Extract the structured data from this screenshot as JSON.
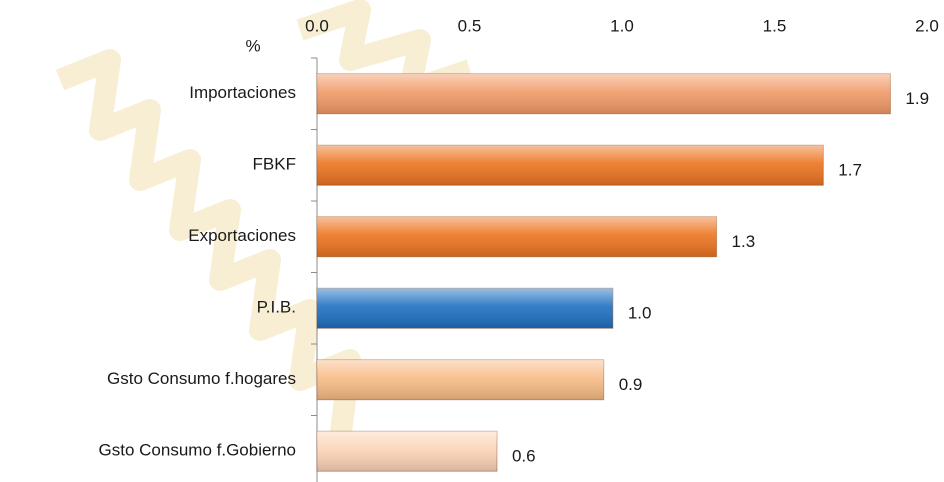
{
  "chart_data": {
    "type": "hbar",
    "y_label": "%",
    "categories": [
      "Importaciones",
      "FBKF",
      "Exportaciones",
      "P.I.B.",
      "Gsto Consumo f.hogares",
      "Gsto Consumo f.Gobierno"
    ],
    "values": [
      1.88,
      1.66,
      1.31,
      0.97,
      0.94,
      0.59
    ],
    "value_labels": [
      "1.9",
      "1.7",
      "1.3",
      "1.0",
      "0.9",
      "0.6"
    ],
    "colors": [
      "#f19a68",
      "#ec7420",
      "#ec7420",
      "#1f70c1",
      "#f8bb86",
      "#fcd3b6"
    ],
    "xlim": [
      0,
      2
    ],
    "xticks": [
      {
        "value": 0,
        "label": "0.0"
      },
      {
        "value": 0.5,
        "label": "0.5"
      },
      {
        "value": 1,
        "label": "1.0"
      },
      {
        "value": 1.5,
        "label": "1.5"
      },
      {
        "value": 2,
        "label": "2.0"
      }
    ],
    "grid": false
  }
}
